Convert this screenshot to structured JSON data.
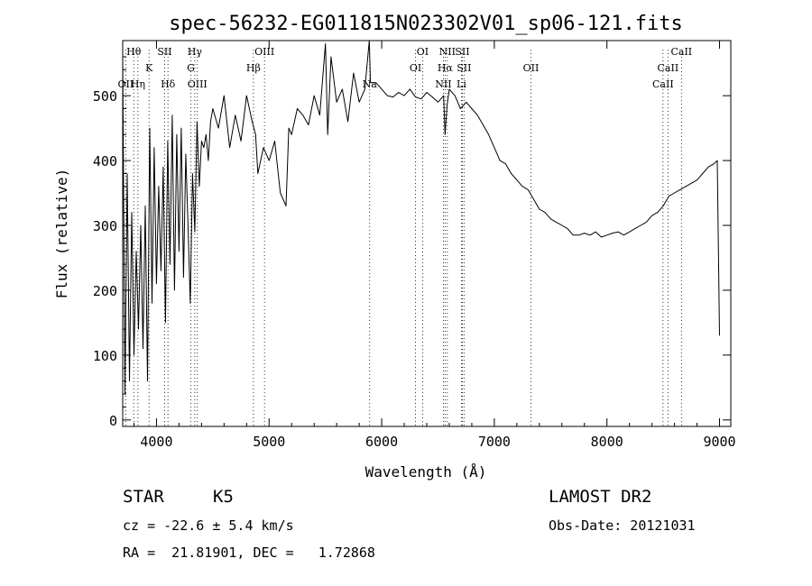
{
  "chart_data": {
    "type": "line",
    "title": "spec-56232-EG011815N023302V01_sp06-121.fits",
    "xlabel": "Wavelength (Å)",
    "ylabel": "Flux (relative)",
    "xlim": [
      3700,
      9100
    ],
    "ylim": [
      -10,
      585
    ],
    "x_ticks": [
      4000,
      5000,
      6000,
      7000,
      8000,
      9000
    ],
    "y_ticks": [
      0,
      100,
      200,
      300,
      400,
      500
    ],
    "line_color": "#000000",
    "series": [
      {
        "x": [
          3700,
          3720,
          3740,
          3760,
          3780,
          3800,
          3820,
          3840,
          3860,
          3880,
          3900,
          3920,
          3940,
          3960,
          3980,
          4000,
          4020,
          4040,
          4060,
          4080,
          4100,
          4120,
          4140,
          4160,
          4180,
          4200,
          4220,
          4240,
          4260,
          4280,
          4300,
          4320,
          4340,
          4360,
          4380,
          4400,
          4420,
          4440,
          4460,
          4480,
          4500,
          4550,
          4600,
          4650,
          4700,
          4750,
          4800,
          4850,
          4880,
          4900,
          4950,
          5000,
          5050,
          5100,
          5150,
          5175,
          5200,
          5250,
          5300,
          5350,
          5400,
          5450,
          5500,
          5520,
          5550,
          5600,
          5650,
          5700,
          5750,
          5800,
          5850,
          5890,
          5900,
          5950,
          6000,
          6050,
          6100,
          6150,
          6200,
          6250,
          6300,
          6350,
          6400,
          6450,
          6500,
          6550,
          6563,
          6580,
          6600,
          6650,
          6700,
          6750,
          6800,
          6850,
          6900,
          6950,
          7000,
          7050,
          7100,
          7150,
          7200,
          7250,
          7300,
          7350,
          7400,
          7450,
          7500,
          7550,
          7600,
          7650,
          7700,
          7750,
          7800,
          7850,
          7900,
          7950,
          8000,
          8050,
          8100,
          8150,
          8200,
          8250,
          8300,
          8350,
          8400,
          8450,
          8500,
          8550,
          8600,
          8650,
          8700,
          8750,
          8800,
          8850,
          8900,
          8950,
          8980,
          9000
        ],
        "y": [
          560,
          40,
          380,
          60,
          320,
          100,
          260,
          140,
          300,
          110,
          330,
          60,
          450,
          180,
          420,
          210,
          360,
          230,
          390,
          150,
          430,
          240,
          470,
          200,
          440,
          260,
          450,
          220,
          410,
          300,
          180,
          380,
          290,
          460,
          360,
          430,
          420,
          440,
          400,
          460,
          480,
          450,
          500,
          420,
          470,
          430,
          500,
          460,
          440,
          380,
          420,
          400,
          430,
          350,
          330,
          450,
          440,
          480,
          470,
          455,
          500,
          470,
          580,
          440,
          560,
          490,
          510,
          460,
          535,
          490,
          510,
          585,
          520,
          520,
          510,
          500,
          498,
          505,
          500,
          510,
          498,
          495,
          505,
          498,
          490,
          500,
          440,
          485,
          510,
          500,
          480,
          490,
          480,
          470,
          455,
          440,
          420,
          400,
          395,
          380,
          370,
          360,
          355,
          340,
          325,
          320,
          310,
          305,
          300,
          295,
          285,
          285,
          288,
          285,
          290,
          282,
          285,
          288,
          290,
          285,
          290,
          295,
          300,
          305,
          315,
          320,
          330,
          345,
          350,
          355,
          360,
          365,
          370,
          380,
          390,
          395,
          400,
          130
        ]
      }
    ],
    "line_markers": [
      {
        "name": "Hθ",
        "x": 3798,
        "tier": 0,
        "color": "#000000"
      },
      {
        "name": "OII",
        "x": 3727,
        "tier": 2,
        "color": "#000000"
      },
      {
        "name": "Hη",
        "x": 3835,
        "tier": 2,
        "color": "#000000"
      },
      {
        "name": "K",
        "x": 3934,
        "tier": 1,
        "color": "#000000"
      },
      {
        "name": "SII",
        "x": 4072,
        "tier": 0,
        "color": "#000000"
      },
      {
        "name": "Hδ",
        "x": 4102,
        "tier": 2,
        "color": "#000000"
      },
      {
        "name": "Hγ",
        "x": 4340,
        "tier": 0,
        "color": "#000000"
      },
      {
        "name": "G",
        "x": 4305,
        "tier": 1,
        "color": "#000000"
      },
      {
        "name": "OIII",
        "x": 4363,
        "tier": 2,
        "color": "#000000"
      },
      {
        "name": "OIII",
        "x": 4959,
        "tier": 0,
        "color": "#000000"
      },
      {
        "name": "Hβ",
        "x": 4861,
        "tier": 1,
        "color": "#000000"
      },
      {
        "name": "Na",
        "x": 5893,
        "tier": 2,
        "color": "#000000"
      },
      {
        "name": "OI",
        "x": 6363,
        "tier": 0,
        "color": "#000000"
      },
      {
        "name": "OI",
        "x": 6300,
        "tier": 1,
        "color": "#000000"
      },
      {
        "name": "NII",
        "x": 6548,
        "tier": 2,
        "color": "#000000"
      },
      {
        "name": "NII",
        "x": 6583,
        "tier": 0,
        "color": "#000000"
      },
      {
        "name": "Hα",
        "x": 6563,
        "tier": 1,
        "color": "#000000"
      },
      {
        "name": "SII",
        "x": 6716,
        "tier": 0,
        "color": "#000000"
      },
      {
        "name": "SII",
        "x": 6731,
        "tier": 1,
        "color": "#000000"
      },
      {
        "name": "Li",
        "x": 6708,
        "tier": 2,
        "color": "#000000"
      },
      {
        "name": "OII",
        "x": 7325,
        "tier": 1,
        "color": "#000000"
      },
      {
        "name": "CaII",
        "x": 8662,
        "tier": 0,
        "color": "#000000"
      },
      {
        "name": "CaII",
        "x": 8542,
        "tier": 1,
        "color": "#000000"
      },
      {
        "name": "CaII",
        "x": 8498,
        "tier": 2,
        "color": "#000000"
      }
    ]
  },
  "info": {
    "object_class": "STAR",
    "subclass": "K5",
    "survey": "LAMOST DR2",
    "redshift_line": "cz = -22.6 ± 5.4 km/s",
    "obs_date_line": "Obs-Date: 20121031",
    "coords_line": "RA =  21.81901, DEC =   1.72868"
  }
}
